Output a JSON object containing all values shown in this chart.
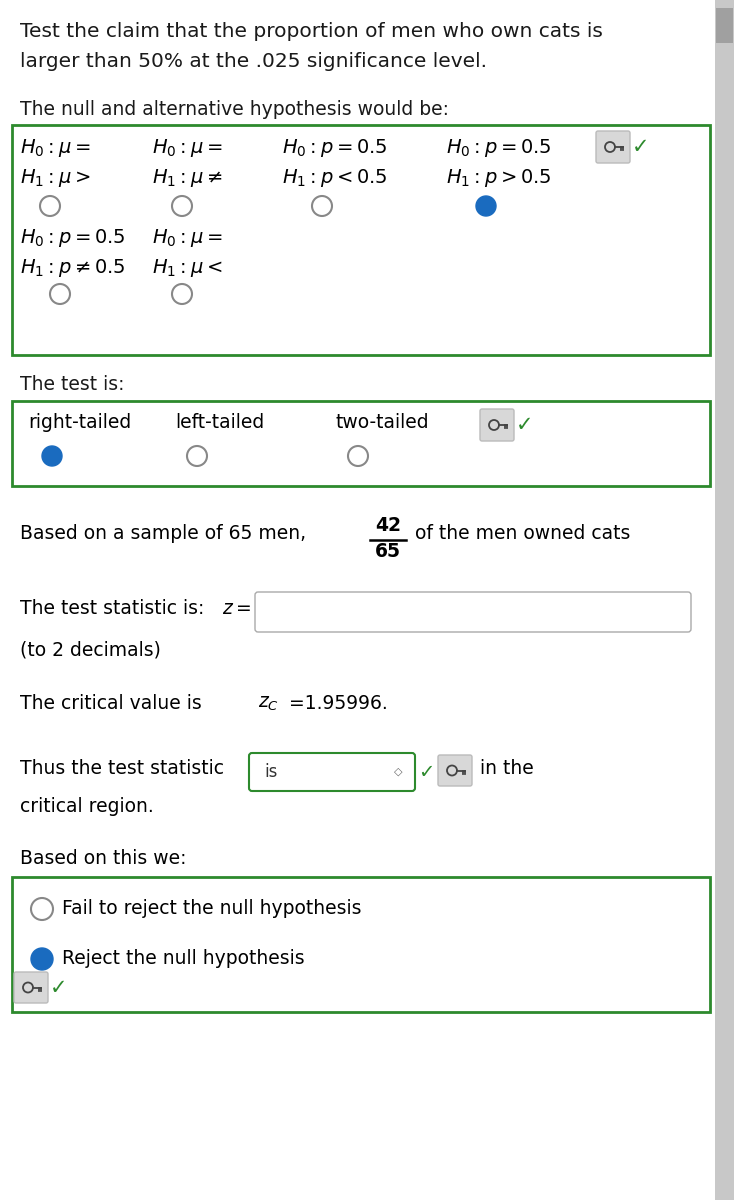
{
  "bg_color": "#ffffff",
  "text_color": "#1a1a1a",
  "green_border": "#2d8a2d",
  "blue_fill": "#1a6bbf",
  "gray_box_bg": "#d8d8d8",
  "title_line1": "Test the claim that the proportion of men who own cats is",
  "title_line2": "larger than 50% at the .025 significance level.",
  "hyp_label": "The null and alternative hypothesis would be:",
  "test_label": "The test is:",
  "test_opt1": "right-tailed",
  "test_opt2": "left-tailed",
  "test_opt3": "two-tailed",
  "sample_line": "Based on a sample of 65 men,",
  "sample_line2": "of the men owned cats",
  "frac_num": "42",
  "frac_den": "65",
  "stat_line": "The test statistic is: ",
  "z_sym": "z =",
  "decimals_line": "(to 2 decimals)",
  "critical_line": "The critical value is z",
  "critical_sub": "C",
  "critical_val": " =1.95996.",
  "thus_line1": "Thus the test statistic",
  "thus_dropdown": "is",
  "thus_line2": " in the",
  "critical_region": "critical region.",
  "based_line": "Based on this we:",
  "opt1": "Fail to reject the null hypothesis",
  "opt2": "Reject the null hypothesis",
  "scrollbar_color": "#c8c8c8",
  "scrollbar_thumb": "#a0a0a0"
}
